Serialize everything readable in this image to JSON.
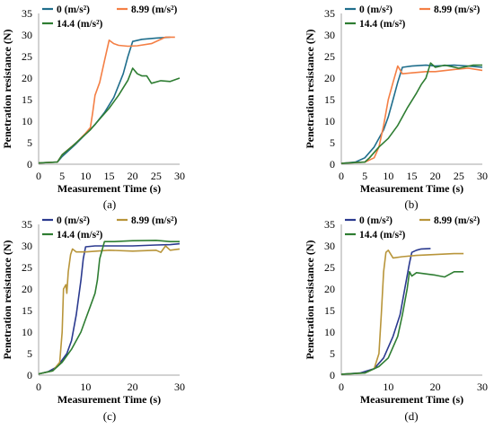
{
  "chart_data": [
    {
      "type": "line",
      "caption": "(a)",
      "xlabel": "Measurement Time (s)",
      "ylabel": "Penetration resistance (N)",
      "xlim": [
        0,
        30
      ],
      "ylim": [
        0,
        35
      ],
      "xticks": [
        0,
        5,
        10,
        15,
        20,
        25,
        30
      ],
      "yticks": [
        0,
        5,
        10,
        15,
        20,
        25,
        30,
        35
      ],
      "grid": false,
      "legend": "top",
      "series": [
        {
          "name": "0 (m/s²)",
          "color": "#1f6e8c",
          "points": [
            [
              0,
              0.3
            ],
            [
              4,
              0.5
            ],
            [
              5,
              1.8
            ],
            [
              8,
              4.8
            ],
            [
              10,
              7
            ],
            [
              12,
              9.2
            ],
            [
              14,
              12
            ],
            [
              16,
              15.5
            ],
            [
              18,
              21
            ],
            [
              19,
              25
            ],
            [
              20,
              28.5
            ],
            [
              22,
              29
            ],
            [
              25,
              29.3
            ],
            [
              28,
              29.5
            ]
          ]
        },
        {
          "name": "8.99 (m/s²)",
          "color": "#f47f45",
          "points": [
            [
              0,
              0.3
            ],
            [
              4,
              0.5
            ],
            [
              5,
              2.2
            ],
            [
              8,
              5
            ],
            [
              10,
              7.2
            ],
            [
              11,
              8.5
            ],
            [
              11.5,
              12
            ],
            [
              12,
              16
            ],
            [
              13,
              19
            ],
            [
              14,
              24
            ],
            [
              15,
              28.8
            ],
            [
              16,
              28
            ],
            [
              17,
              27.6
            ],
            [
              19,
              27.4
            ],
            [
              21,
              27.5
            ],
            [
              24,
              28
            ],
            [
              27,
              29.5
            ],
            [
              29,
              29.5
            ]
          ]
        },
        {
          "name": "14.4 (m/s²)",
          "color": "#2e7d32",
          "points": [
            [
              0,
              0.3
            ],
            [
              4,
              0.5
            ],
            [
              5,
              2.2
            ],
            [
              7,
              4
            ],
            [
              9,
              6
            ],
            [
              11,
              8
            ],
            [
              13,
              10.5
            ],
            [
              15,
              13
            ],
            [
              17,
              16
            ],
            [
              19,
              19.5
            ],
            [
              20,
              22.3
            ],
            [
              21,
              21
            ],
            [
              22,
              20.5
            ],
            [
              23,
              20.5
            ],
            [
              24,
              18.8
            ],
            [
              26,
              19.4
            ],
            [
              28,
              19.2
            ],
            [
              30,
              20
            ]
          ]
        }
      ]
    },
    {
      "type": "line",
      "caption": "(b)",
      "xlabel": "Measurement Time (s)",
      "ylabel": "Penetration resistance (N)",
      "xlim": [
        0,
        30
      ],
      "ylim": [
        0,
        35
      ],
      "xticks": [
        0,
        5,
        10,
        15,
        20,
        25,
        30
      ],
      "yticks": [
        0,
        5,
        10,
        15,
        20,
        25,
        30,
        35
      ],
      "grid": false,
      "legend": "top",
      "series": [
        {
          "name": "0 (m/s²)",
          "color": "#1f6e8c",
          "points": [
            [
              0,
              0.2
            ],
            [
              3,
              0.5
            ],
            [
              5,
              1.5
            ],
            [
              7,
              4
            ],
            [
              9,
              8
            ],
            [
              10,
              11
            ],
            [
              11,
              15
            ],
            [
              12,
              19
            ],
            [
              13,
              22.5
            ],
            [
              15,
              22.8
            ],
            [
              18,
              23
            ],
            [
              20,
              22.8
            ],
            [
              24,
              23
            ],
            [
              27,
              22.8
            ],
            [
              30,
              22.5
            ]
          ]
        },
        {
          "name": "8.99 (m/s²)",
          "color": "#f47f45",
          "points": [
            [
              0,
              0.2
            ],
            [
              5,
              0.5
            ],
            [
              7,
              1.5
            ],
            [
              8,
              4
            ],
            [
              9,
              9
            ],
            [
              10,
              15
            ],
            [
              11,
              19
            ],
            [
              12,
              22.8
            ],
            [
              13,
              21
            ],
            [
              15,
              21.2
            ],
            [
              18,
              21.5
            ],
            [
              20,
              21.5
            ],
            [
              24,
              22
            ],
            [
              27,
              22.3
            ],
            [
              30,
              21.8
            ]
          ]
        },
        {
          "name": "14.4 (m/s²)",
          "color": "#2e7d32",
          "points": [
            [
              0,
              0.2
            ],
            [
              5,
              0.5
            ],
            [
              6,
              1.5
            ],
            [
              8,
              4
            ],
            [
              10,
              6
            ],
            [
              12,
              9
            ],
            [
              14,
              13
            ],
            [
              16,
              16.5
            ],
            [
              17,
              18.5
            ],
            [
              18,
              20
            ],
            [
              19,
              23.5
            ],
            [
              20,
              22.5
            ],
            [
              22,
              23
            ],
            [
              25,
              22.3
            ],
            [
              28,
              23
            ],
            [
              30,
              23
            ]
          ]
        }
      ]
    },
    {
      "type": "line",
      "caption": "(c)",
      "xlabel": "Measurement Time (s)",
      "ylabel": "Penetration resistance (N)",
      "xlim": [
        0,
        30
      ],
      "ylim": [
        0,
        35
      ],
      "xticks": [
        0,
        10,
        20,
        30
      ],
      "yticks": [
        0,
        5,
        10,
        15,
        20,
        25,
        30,
        35
      ],
      "grid": false,
      "legend": "top",
      "series": [
        {
          "name": "0 (m/s²)",
          "color": "#2b3a8f",
          "points": [
            [
              0,
              0.3
            ],
            [
              2,
              0.8
            ],
            [
              4,
              2
            ],
            [
              6,
              5
            ],
            [
              7,
              8
            ],
            [
              8,
              14
            ],
            [
              9,
              22
            ],
            [
              9.5,
              27
            ],
            [
              10,
              29.8
            ],
            [
              12,
              30
            ],
            [
              15,
              30
            ],
            [
              20,
              30
            ],
            [
              25,
              30.2
            ],
            [
              28,
              30.3
            ],
            [
              30,
              30.5
            ]
          ]
        },
        {
          "name": "8.99 (m/s²)",
          "color": "#b8953a",
          "points": [
            [
              0,
              0.3
            ],
            [
              3,
              1
            ],
            [
              4.5,
              3
            ],
            [
              5,
              10
            ],
            [
              5.3,
              20
            ],
            [
              5.8,
              21
            ],
            [
              6,
              19
            ],
            [
              6.3,
              24
            ],
            [
              6.8,
              28
            ],
            [
              7.2,
              29.3
            ],
            [
              8,
              28.6
            ],
            [
              10,
              28.6
            ],
            [
              15,
              29
            ],
            [
              20,
              28.8
            ],
            [
              25,
              29
            ],
            [
              26,
              28.5
            ],
            [
              27,
              30
            ],
            [
              28,
              29
            ],
            [
              30,
              29.3
            ]
          ]
        },
        {
          "name": "14.4 (m/s²)",
          "color": "#2e7d32",
          "points": [
            [
              0,
              0.3
            ],
            [
              3,
              1
            ],
            [
              5,
              3
            ],
            [
              7,
              6
            ],
            [
              9,
              10
            ],
            [
              10,
              13
            ],
            [
              11,
              16
            ],
            [
              12,
              19
            ],
            [
              12.5,
              22
            ],
            [
              13,
              27
            ],
            [
              14,
              31
            ],
            [
              16,
              31
            ],
            [
              20,
              31.2
            ],
            [
              25,
              31.3
            ],
            [
              28,
              31
            ],
            [
              30,
              31
            ]
          ]
        }
      ]
    },
    {
      "type": "line",
      "caption": "(d)",
      "xlabel": "Measurement Time (s)",
      "ylabel": "Penetration resistance (N)",
      "xlim": [
        0,
        30
      ],
      "ylim": [
        0,
        35
      ],
      "xticks": [
        0,
        10,
        20,
        30
      ],
      "yticks": [
        0,
        5,
        10,
        15,
        20,
        25,
        30,
        35
      ],
      "grid": false,
      "legend": "top",
      "series": [
        {
          "name": "0 (m/s²)",
          "color": "#2b3a8f",
          "points": [
            [
              0,
              0.2
            ],
            [
              4,
              0.5
            ],
            [
              7,
              1.5
            ],
            [
              9,
              4
            ],
            [
              11,
              9
            ],
            [
              12.5,
              14
            ],
            [
              13.5,
              20
            ],
            [
              14.5,
              26
            ],
            [
              15,
              28.5
            ],
            [
              16,
              29
            ],
            [
              17,
              29.3
            ],
            [
              19,
              29.4
            ]
          ]
        },
        {
          "name": "8.99 (m/s²)",
          "color": "#b8953a",
          "points": [
            [
              0,
              0.2
            ],
            [
              5,
              0.5
            ],
            [
              7,
              1.5
            ],
            [
              8,
              5
            ],
            [
              8.5,
              14
            ],
            [
              9,
              24
            ],
            [
              9.5,
              28.5
            ],
            [
              10,
              29
            ],
            [
              11,
              27.2
            ],
            [
              13,
              27.5
            ],
            [
              16,
              27.8
            ],
            [
              20,
              28
            ],
            [
              24,
              28.2
            ],
            [
              26,
              28.2
            ]
          ]
        },
        {
          "name": "14.4 (m/s²)",
          "color": "#2e7d32",
          "points": [
            [
              0,
              0.2
            ],
            [
              5,
              0.5
            ],
            [
              8,
              2
            ],
            [
              10,
              4
            ],
            [
              12,
              9
            ],
            [
              13,
              14
            ],
            [
              14,
              20
            ],
            [
              14.5,
              24
            ],
            [
              15,
              23
            ],
            [
              16,
              23.8
            ],
            [
              18,
              23.5
            ],
            [
              20,
              23.2
            ],
            [
              22,
              22.8
            ],
            [
              24,
              24
            ],
            [
              26,
              24
            ]
          ]
        }
      ]
    }
  ]
}
